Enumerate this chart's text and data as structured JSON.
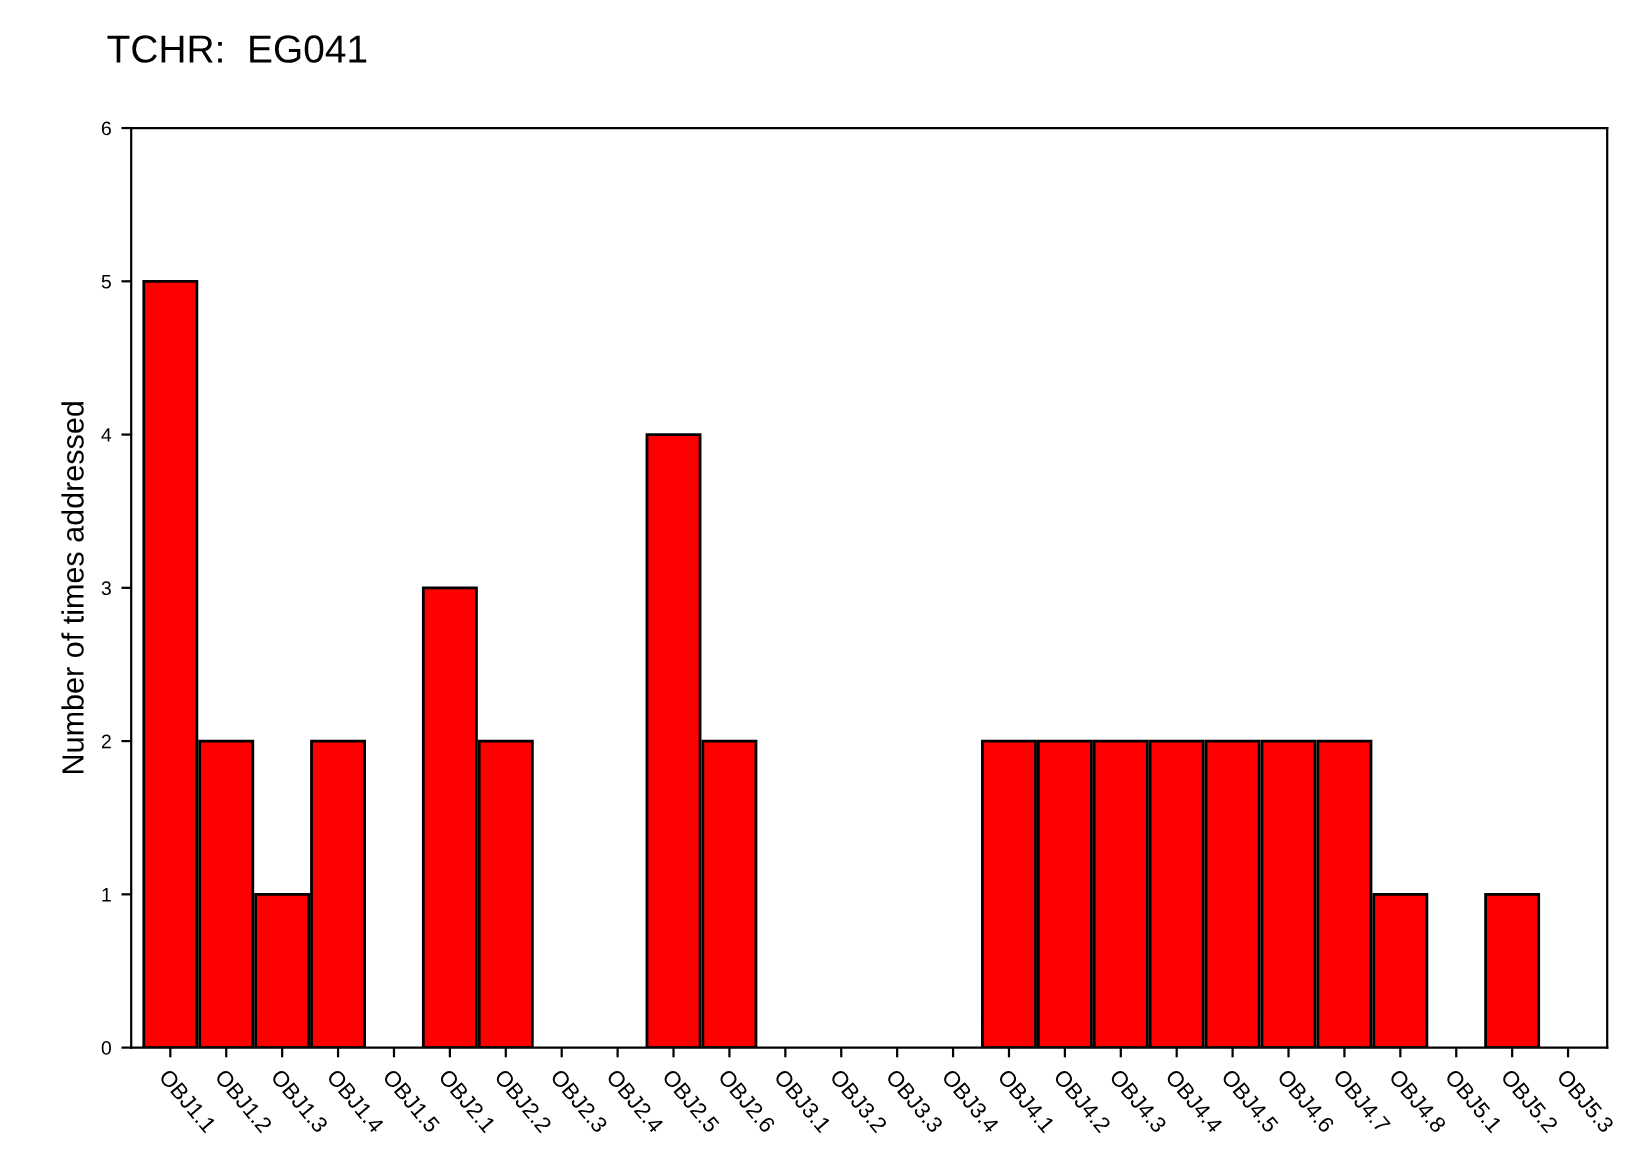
{
  "chart_data": {
    "type": "bar",
    "title": "TCHR:  EG041",
    "ylabel": "Number of times addressed",
    "categories": [
      "OBJ1.1",
      "OBJ1.2",
      "OBJ1.3",
      "OBJ1.4",
      "OBJ1.5",
      "OBJ2.1",
      "OBJ2.2",
      "OBJ2.3",
      "OBJ2.4",
      "OBJ2.5",
      "OBJ2.6",
      "OBJ3.1",
      "OBJ3.2",
      "OBJ3.3",
      "OBJ3.4",
      "OBJ4.1",
      "OBJ4.2",
      "OBJ4.3",
      "OBJ4.4",
      "OBJ4.5",
      "OBJ4.6",
      "OBJ4.7",
      "OBJ4.8",
      "OBJ5.1",
      "OBJ5.2",
      "OBJ5.3"
    ],
    "values": [
      5,
      2,
      1,
      2,
      0,
      3,
      2,
      0,
      0,
      4,
      2,
      0,
      0,
      0,
      0,
      2,
      2,
      2,
      2,
      2,
      2,
      2,
      1,
      0,
      1,
      0
    ],
    "color": "#ff0000",
    "ylim": [
      0,
      6
    ],
    "yticks": [
      0,
      1,
      2,
      3,
      4,
      5,
      6
    ],
    "grid": false,
    "legend": false
  }
}
